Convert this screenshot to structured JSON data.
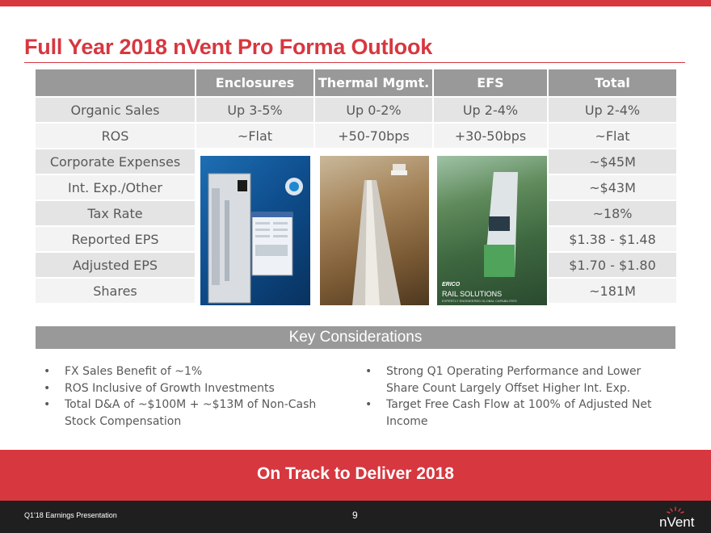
{
  "slide": {
    "title": "Full Year 2018 nVent Pro Forma Outlook",
    "accent_color": "#d7373f"
  },
  "table": {
    "columns": [
      "",
      "Enclosures",
      "Thermal Mgmt.",
      "EFS",
      "Total"
    ],
    "rows": [
      {
        "label": "Organic Sales",
        "enclosures": "Up 3-5%",
        "thermal": "Up 0-2%",
        "efs": "Up 2-4%",
        "total": "Up 2-4%"
      },
      {
        "label": "ROS",
        "enclosures": "~Flat",
        "thermal": "+50-70bps",
        "efs": "+30-50bps",
        "total": "~Flat"
      },
      {
        "label": "Corporate Expenses",
        "total": "~$45M"
      },
      {
        "label": "Int. Exp./Other",
        "total": "~$43M"
      },
      {
        "label": "Tax Rate",
        "total": "~18%"
      },
      {
        "label": "Reported EPS",
        "total": "$1.38 - $1.48"
      },
      {
        "label": "Adjusted EPS",
        "total": "$1.70 - $1.80"
      },
      {
        "label": "Shares",
        "total": "~181M"
      }
    ]
  },
  "images": {
    "enclosures_alt": "enclosure-with-cooling-unit-photo",
    "thermal_alt": "pipeline-photo",
    "rail_alt": "rail-solutions-photo",
    "rail_brand": "ERICO",
    "rail_caption": "RAIL SOLUTIONS",
    "rail_subcaption": "EXPERTLY ENGINEERED GLOBAL CAPABILITIES"
  },
  "key_considerations": {
    "heading": "Key Considerations",
    "left": [
      "FX Sales Benefit of ~1%",
      "ROS Inclusive of Growth Investments",
      "Total D&A of ~$100M + ~$13M of Non-Cash Stock Compensation"
    ],
    "right": [
      "Strong Q1 Operating Performance and Lower Share Count Largely Offset Higher Int. Exp.",
      "Target Free Cash Flow at 100% of Adjusted Net Income"
    ],
    "bullet": "•"
  },
  "banner": {
    "text": "On Track to Deliver 2018"
  },
  "footer": {
    "left": "Q1'18 Earnings Presentation",
    "page": "9",
    "logo": "nVent"
  }
}
